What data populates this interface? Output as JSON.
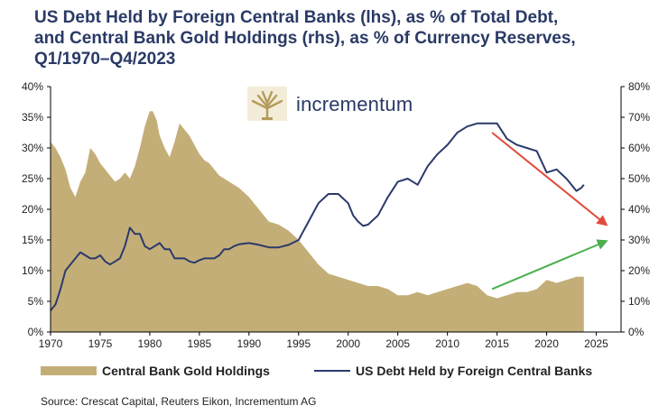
{
  "header": {
    "title_line1": "US Debt Held by Foreign Central Banks (lhs), as % of Total Debt,",
    "title_line2": "and Central Bank Gold Holdings (rhs), as % of Currency Reserves,",
    "title_line3": "Q1/1970–Q4/2023"
  },
  "brand": {
    "name": "incrementum",
    "logo_icon": "tree-icon"
  },
  "source": "Source: Crescat Capital, Reuters Eikon, Incrementum AG",
  "colors": {
    "gold_area": "#c4ae78",
    "debt_line": "#2b3a6b",
    "down_arrow": "#e04a3a",
    "up_arrow": "#4caf50"
  },
  "chart_data": {
    "type": "area",
    "x": {
      "tick_labels": [
        "1970",
        "1975",
        "1980",
        "1985",
        "1990",
        "1995",
        "2000",
        "2005",
        "2010",
        "2015",
        "2020",
        "2025"
      ],
      "range": [
        1970,
        2027.5
      ]
    },
    "y_left": {
      "tick_labels": [
        "0%",
        "5%",
        "10%",
        "15%",
        "20%",
        "25%",
        "30%",
        "35%",
        "40%"
      ],
      "range": [
        0,
        40
      ]
    },
    "y_right": {
      "tick_labels": [
        "0%",
        "10%",
        "20%",
        "30%",
        "40%",
        "50%",
        "60%",
        "70%",
        "80%"
      ],
      "range": [
        0,
        80
      ]
    },
    "legend_position": "bottom",
    "grid": false,
    "series": [
      {
        "name": "Central Bank Gold Holdings",
        "axis": "right",
        "type": "area",
        "points": [
          [
            1970,
            62
          ],
          [
            1970.5,
            60
          ],
          [
            1971,
            57
          ],
          [
            1971.5,
            53
          ],
          [
            1972,
            47
          ],
          [
            1972.5,
            44
          ],
          [
            1973,
            49
          ],
          [
            1973.5,
            52
          ],
          [
            1974,
            60
          ],
          [
            1974.5,
            58
          ],
          [
            1975,
            55
          ],
          [
            1975.5,
            53
          ],
          [
            1976,
            51
          ],
          [
            1976.5,
            49
          ],
          [
            1977,
            50
          ],
          [
            1977.5,
            52
          ],
          [
            1978,
            50
          ],
          [
            1978.5,
            54
          ],
          [
            1979,
            60
          ],
          [
            1979.5,
            67
          ],
          [
            1980,
            72
          ],
          [
            1980.3,
            72
          ],
          [
            1980.7,
            69
          ],
          [
            1981,
            64
          ],
          [
            1981.5,
            60
          ],
          [
            1982,
            57
          ],
          [
            1982.5,
            62
          ],
          [
            1983,
            68
          ],
          [
            1983.5,
            66
          ],
          [
            1984,
            64
          ],
          [
            1984.5,
            61
          ],
          [
            1985,
            58
          ],
          [
            1985.5,
            56
          ],
          [
            1986,
            55
          ],
          [
            1987,
            51
          ],
          [
            1988,
            49
          ],
          [
            1989,
            47
          ],
          [
            1990,
            44
          ],
          [
            1991,
            40
          ],
          [
            1992,
            36
          ],
          [
            1993,
            35
          ],
          [
            1994,
            33
          ],
          [
            1995,
            30
          ],
          [
            1996,
            26
          ],
          [
            1997,
            22
          ],
          [
            1998,
            19
          ],
          [
            1999,
            18
          ],
          [
            2000,
            17
          ],
          [
            2001,
            16
          ],
          [
            2002,
            15
          ],
          [
            2003,
            15
          ],
          [
            2004,
            14
          ],
          [
            2005,
            12
          ],
          [
            2006,
            12
          ],
          [
            2007,
            13
          ],
          [
            2008,
            12
          ],
          [
            2009,
            13
          ],
          [
            2010,
            14
          ],
          [
            2011,
            15
          ],
          [
            2012,
            16
          ],
          [
            2013,
            15
          ],
          [
            2014,
            12
          ],
          [
            2015,
            11
          ],
          [
            2016,
            12
          ],
          [
            2017,
            13
          ],
          [
            2018,
            13
          ],
          [
            2019,
            14
          ],
          [
            2020,
            17
          ],
          [
            2021,
            16
          ],
          [
            2022,
            17
          ],
          [
            2023,
            18
          ],
          [
            2023.75,
            18
          ]
        ]
      },
      {
        "name": "US Debt Held by Foreign Central Banks",
        "axis": "left",
        "type": "line",
        "points": [
          [
            1970,
            3.5
          ],
          [
            1970.5,
            4.5
          ],
          [
            1971,
            7
          ],
          [
            1971.5,
            10
          ],
          [
            1972,
            11
          ],
          [
            1972.5,
            12
          ],
          [
            1973,
            13
          ],
          [
            1973.5,
            12.5
          ],
          [
            1974,
            12
          ],
          [
            1974.5,
            12
          ],
          [
            1975,
            12.5
          ],
          [
            1975.5,
            11.5
          ],
          [
            1976,
            11
          ],
          [
            1976.5,
            11.5
          ],
          [
            1977,
            12
          ],
          [
            1977.5,
            14
          ],
          [
            1978,
            17
          ],
          [
            1978.5,
            16
          ],
          [
            1979,
            16
          ],
          [
            1979.5,
            14
          ],
          [
            1980,
            13.5
          ],
          [
            1980.5,
            14
          ],
          [
            1981,
            14.5
          ],
          [
            1981.5,
            13.5
          ],
          [
            1982,
            13.5
          ],
          [
            1982.5,
            12
          ],
          [
            1983,
            12
          ],
          [
            1983.5,
            12
          ],
          [
            1984,
            11.5
          ],
          [
            1984.5,
            11.3
          ],
          [
            1985,
            11.7
          ],
          [
            1985.5,
            12
          ],
          [
            1986,
            12
          ],
          [
            1986.5,
            12
          ],
          [
            1987,
            12.5
          ],
          [
            1987.5,
            13.5
          ],
          [
            1988,
            13.5
          ],
          [
            1988.5,
            14
          ],
          [
            1989,
            14.3
          ],
          [
            1990,
            14.5
          ],
          [
            1991,
            14.2
          ],
          [
            1992,
            13.8
          ],
          [
            1993,
            13.8
          ],
          [
            1994,
            14.2
          ],
          [
            1995,
            15
          ],
          [
            1996,
            18
          ],
          [
            1997,
            21
          ],
          [
            1998,
            22.5
          ],
          [
            1999,
            22.5
          ],
          [
            2000,
            21
          ],
          [
            2000.5,
            19
          ],
          [
            2001,
            18
          ],
          [
            2001.5,
            17.3
          ],
          [
            2002,
            17.5
          ],
          [
            2003,
            19
          ],
          [
            2004,
            22
          ],
          [
            2005,
            24.5
          ],
          [
            2006,
            25
          ],
          [
            2007,
            24
          ],
          [
            2008,
            27
          ],
          [
            2009,
            29
          ],
          [
            2010,
            30.5
          ],
          [
            2011,
            32.5
          ],
          [
            2012,
            33.5
          ],
          [
            2013,
            34
          ],
          [
            2014,
            34
          ],
          [
            2015,
            34
          ],
          [
            2016,
            31.5
          ],
          [
            2017,
            30.5
          ],
          [
            2018,
            30
          ],
          [
            2019,
            29.5
          ],
          [
            2020,
            26
          ],
          [
            2021,
            26.5
          ],
          [
            2022,
            25
          ],
          [
            2022.5,
            24
          ],
          [
            2023,
            23
          ],
          [
            2023.5,
            23.5
          ],
          [
            2023.75,
            24
          ]
        ]
      }
    ],
    "annotations": [
      {
        "type": "arrow",
        "color": "down_arrow",
        "from": [
          2014.5,
          32.5
        ],
        "to": [
          2026,
          17.5
        ]
      },
      {
        "type": "arrow",
        "color": "up_arrow",
        "from": [
          2014.5,
          7
        ],
        "to": [
          2026,
          14.8
        ]
      }
    ]
  }
}
